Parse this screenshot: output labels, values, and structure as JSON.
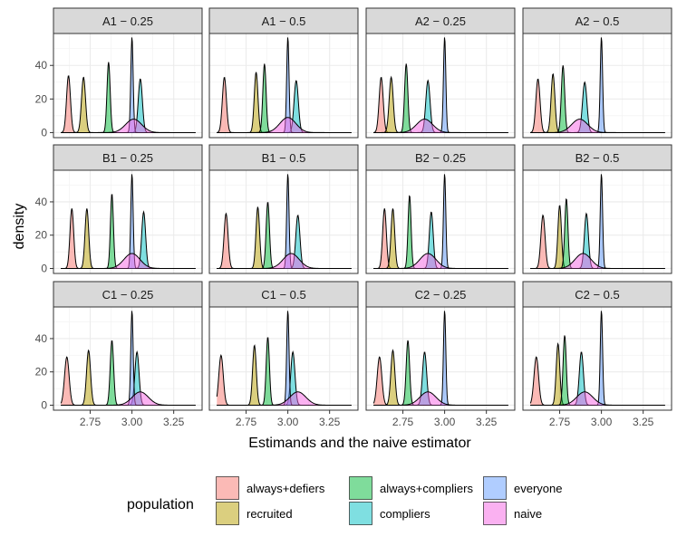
{
  "chart_data": {
    "type": "area",
    "title": "",
    "xlabel": "Estimands and the naive estimator",
    "ylabel": "density",
    "xlim": [
      2.53,
      3.42
    ],
    "ylim": [
      -3,
      59
    ],
    "x_ticks": [
      2.75,
      3.0,
      3.25
    ],
    "x_tick_labels": [
      "2.75",
      "3.00",
      "3.25"
    ],
    "y_ticks": [
      0,
      20,
      40
    ],
    "y_tick_labels": [
      "0",
      "20",
      "40"
    ],
    "grid": true,
    "legend": {
      "title": "population",
      "position": "bottom",
      "entries": [
        {
          "label": "always+defiers",
          "color": "#F8766D"
        },
        {
          "label": "recruited",
          "color": "#B79F00"
        },
        {
          "label": "always+compliers",
          "color": "#00BA38"
        },
        {
          "label": "compliers",
          "color": "#00BFC4"
        },
        {
          "label": "everyone",
          "color": "#619CFF"
        },
        {
          "label": "naive",
          "color": "#F564E3"
        }
      ]
    },
    "series_order": [
      "always+defiers",
      "recruited",
      "always+compliers",
      "compliers",
      "everyone",
      "naive"
    ],
    "series_colors": [
      "#F8766D",
      "#B79F00",
      "#00BA38",
      "#00BFC4",
      "#619CFF",
      "#F564E3"
    ],
    "panels": [
      {
        "title": "A1 − 0.25",
        "peaks": [
          {
            "series": "always+defiers",
            "center": 2.62,
            "height": 34
          },
          {
            "series": "recruited",
            "center": 2.71,
            "height": 33
          },
          {
            "series": "always+compliers",
            "center": 2.86,
            "height": 42
          },
          {
            "series": "compliers",
            "center": 3.05,
            "height": 32
          },
          {
            "series": "everyone",
            "center": 3.0,
            "height": 57
          },
          {
            "series": "naive",
            "center": 3.01,
            "height": 8
          }
        ]
      },
      {
        "title": "A1 − 0.5",
        "peaks": [
          {
            "series": "always+defiers",
            "center": 2.62,
            "height": 33
          },
          {
            "series": "recruited",
            "center": 2.81,
            "height": 36
          },
          {
            "series": "always+compliers",
            "center": 2.86,
            "height": 41
          },
          {
            "series": "compliers",
            "center": 3.05,
            "height": 31
          },
          {
            "series": "everyone",
            "center": 3.0,
            "height": 57
          },
          {
            "series": "naive",
            "center": 3.0,
            "height": 9
          }
        ]
      },
      {
        "title": "A2 − 0.25",
        "peaks": [
          {
            "series": "always+defiers",
            "center": 2.62,
            "height": 33
          },
          {
            "series": "recruited",
            "center": 2.68,
            "height": 33
          },
          {
            "series": "always+compliers",
            "center": 2.77,
            "height": 41
          },
          {
            "series": "compliers",
            "center": 2.9,
            "height": 31
          },
          {
            "series": "everyone",
            "center": 3.0,
            "height": 57
          },
          {
            "series": "naive",
            "center": 2.88,
            "height": 8
          }
        ]
      },
      {
        "title": "A2 − 0.5",
        "peaks": [
          {
            "series": "always+defiers",
            "center": 2.62,
            "height": 32
          },
          {
            "series": "recruited",
            "center": 2.71,
            "height": 35
          },
          {
            "series": "always+compliers",
            "center": 2.77,
            "height": 40
          },
          {
            "series": "compliers",
            "center": 2.9,
            "height": 30
          },
          {
            "series": "everyone",
            "center": 3.0,
            "height": 57
          },
          {
            "series": "naive",
            "center": 2.87,
            "height": 8
          }
        ]
      },
      {
        "title": "B1 − 0.25",
        "peaks": [
          {
            "series": "always+defiers",
            "center": 2.64,
            "height": 36
          },
          {
            "series": "recruited",
            "center": 2.73,
            "height": 36
          },
          {
            "series": "always+compliers",
            "center": 2.88,
            "height": 45
          },
          {
            "series": "compliers",
            "center": 3.07,
            "height": 34
          },
          {
            "series": "everyone",
            "center": 3.0,
            "height": 57
          },
          {
            "series": "naive",
            "center": 3.0,
            "height": 9
          }
        ]
      },
      {
        "title": "B1 − 0.5",
        "peaks": [
          {
            "series": "always+defiers",
            "center": 2.63,
            "height": 33
          },
          {
            "series": "recruited",
            "center": 2.82,
            "height": 37
          },
          {
            "series": "always+compliers",
            "center": 2.88,
            "height": 40
          },
          {
            "series": "compliers",
            "center": 3.06,
            "height": 32
          },
          {
            "series": "everyone",
            "center": 3.0,
            "height": 57
          },
          {
            "series": "naive",
            "center": 3.02,
            "height": 9
          }
        ]
      },
      {
        "title": "B2 − 0.25",
        "peaks": [
          {
            "series": "always+defiers",
            "center": 2.64,
            "height": 36
          },
          {
            "series": "recruited",
            "center": 2.69,
            "height": 36
          },
          {
            "series": "always+compliers",
            "center": 2.79,
            "height": 44
          },
          {
            "series": "compliers",
            "center": 2.92,
            "height": 34
          },
          {
            "series": "everyone",
            "center": 3.0,
            "height": 57
          },
          {
            "series": "naive",
            "center": 2.9,
            "height": 9
          }
        ]
      },
      {
        "title": "B2 − 0.5",
        "peaks": [
          {
            "series": "always+defiers",
            "center": 2.65,
            "height": 32
          },
          {
            "series": "recruited",
            "center": 2.75,
            "height": 38
          },
          {
            "series": "always+compliers",
            "center": 2.79,
            "height": 42
          },
          {
            "series": "compliers",
            "center": 2.91,
            "height": 33
          },
          {
            "series": "everyone",
            "center": 3.0,
            "height": 57
          },
          {
            "series": "naive",
            "center": 2.89,
            "height": 9
          }
        ]
      },
      {
        "title": "C1 − 0.25",
        "peaks": [
          {
            "series": "always+defiers",
            "center": 2.61,
            "height": 29
          },
          {
            "series": "recruited",
            "center": 2.74,
            "height": 33
          },
          {
            "series": "always+compliers",
            "center": 2.88,
            "height": 39
          },
          {
            "series": "compliers",
            "center": 3.03,
            "height": 32
          },
          {
            "series": "everyone",
            "center": 3.0,
            "height": 57
          },
          {
            "series": "naive",
            "center": 3.05,
            "height": 8
          }
        ]
      },
      {
        "title": "C1 − 0.5",
        "peaks": [
          {
            "series": "always+defiers",
            "center": 2.6,
            "height": 30
          },
          {
            "series": "recruited",
            "center": 2.8,
            "height": 36
          },
          {
            "series": "always+compliers",
            "center": 2.88,
            "height": 41
          },
          {
            "series": "compliers",
            "center": 3.03,
            "height": 32
          },
          {
            "series": "everyone",
            "center": 3.0,
            "height": 57
          },
          {
            "series": "naive",
            "center": 3.06,
            "height": 8
          }
        ]
      },
      {
        "title": "C2 − 0.25",
        "peaks": [
          {
            "series": "always+defiers",
            "center": 2.61,
            "height": 29
          },
          {
            "series": "recruited",
            "center": 2.69,
            "height": 33
          },
          {
            "series": "always+compliers",
            "center": 2.78,
            "height": 39
          },
          {
            "series": "compliers",
            "center": 2.88,
            "height": 32
          },
          {
            "series": "everyone",
            "center": 3.0,
            "height": 57
          },
          {
            "series": "naive",
            "center": 2.9,
            "height": 8
          }
        ]
      },
      {
        "title": "C2 − 0.5",
        "peaks": [
          {
            "series": "always+defiers",
            "center": 2.61,
            "height": 29
          },
          {
            "series": "recruited",
            "center": 2.74,
            "height": 37
          },
          {
            "series": "always+compliers",
            "center": 2.78,
            "height": 42
          },
          {
            "series": "compliers",
            "center": 2.88,
            "height": 32
          },
          {
            "series": "everyone",
            "center": 3.0,
            "height": 57
          },
          {
            "series": "naive",
            "center": 2.9,
            "height": 8
          }
        ]
      }
    ]
  }
}
